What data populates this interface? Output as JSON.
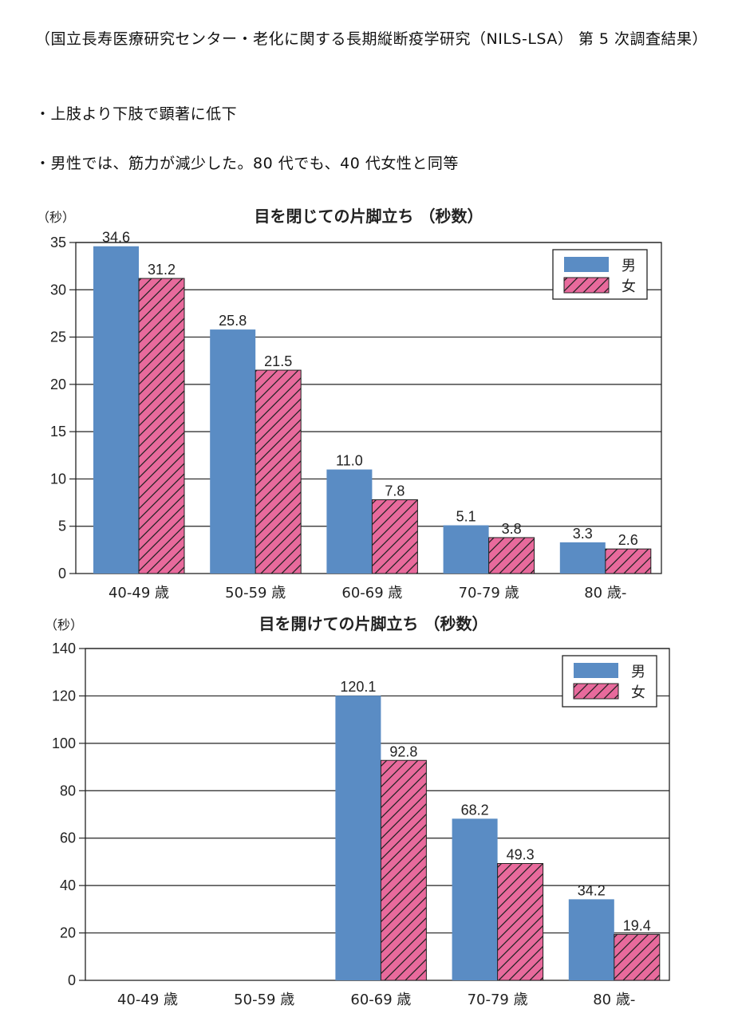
{
  "header": {
    "source": "（国立長寿医療研究センター・老化に関する長期縦断疫学研究（NILS-LSA） 第 5 次調査結果）",
    "bullet1": "・上肢より下肢で顕著に低下",
    "bullet2": "・男性では、筋力が減少した。80 代でも、40 代女性と同等"
  },
  "colors": {
    "male": "#5a8cc4",
    "female": "#e86a9c",
    "hatch": "#222222",
    "grid": "#222222"
  },
  "chart_data": [
    {
      "type": "bar",
      "title": "目を閉じての片脚立ち （秒数）",
      "ylabel": "（秒）",
      "ylim": [
        0,
        35
      ],
      "yticks": [
        0,
        5,
        10,
        15,
        20,
        25,
        30,
        35
      ],
      "grid": true,
      "legend_position": "top-right",
      "categories": [
        "40-49 歳",
        "50-59 歳",
        "60-69 歳",
        "70-79 歳",
        "80 歳-"
      ],
      "series": [
        {
          "name": "男",
          "values": [
            34.6,
            25.8,
            11.0,
            5.1,
            3.3
          ],
          "labels": [
            "34.6",
            "25.8",
            "11.0",
            "5.1",
            "3.3"
          ]
        },
        {
          "name": "女",
          "values": [
            31.2,
            21.5,
            7.8,
            3.8,
            2.6
          ],
          "labels": [
            "31.2",
            "21.5",
            "7.8",
            "3.8",
            "2.6"
          ]
        }
      ]
    },
    {
      "type": "bar",
      "title": "目を開けての片脚立ち （秒数）",
      "ylabel": "（秒）",
      "ylim": [
        0,
        140
      ],
      "yticks": [
        0,
        20,
        40,
        60,
        80,
        100,
        120,
        140
      ],
      "grid": true,
      "legend_position": "top-right",
      "categories": [
        "40-49 歳",
        "50-59 歳",
        "60-69 歳",
        "70-79 歳",
        "80 歳-"
      ],
      "series": [
        {
          "name": "男",
          "values": [
            null,
            null,
            120.1,
            68.2,
            34.2
          ],
          "labels": [
            "",
            "",
            "120.1",
            "68.2",
            "34.2"
          ]
        },
        {
          "name": "女",
          "values": [
            null,
            null,
            92.8,
            49.3,
            19.4
          ],
          "labels": [
            "",
            "",
            "92.8",
            "49.3",
            "19.4"
          ]
        }
      ]
    }
  ]
}
